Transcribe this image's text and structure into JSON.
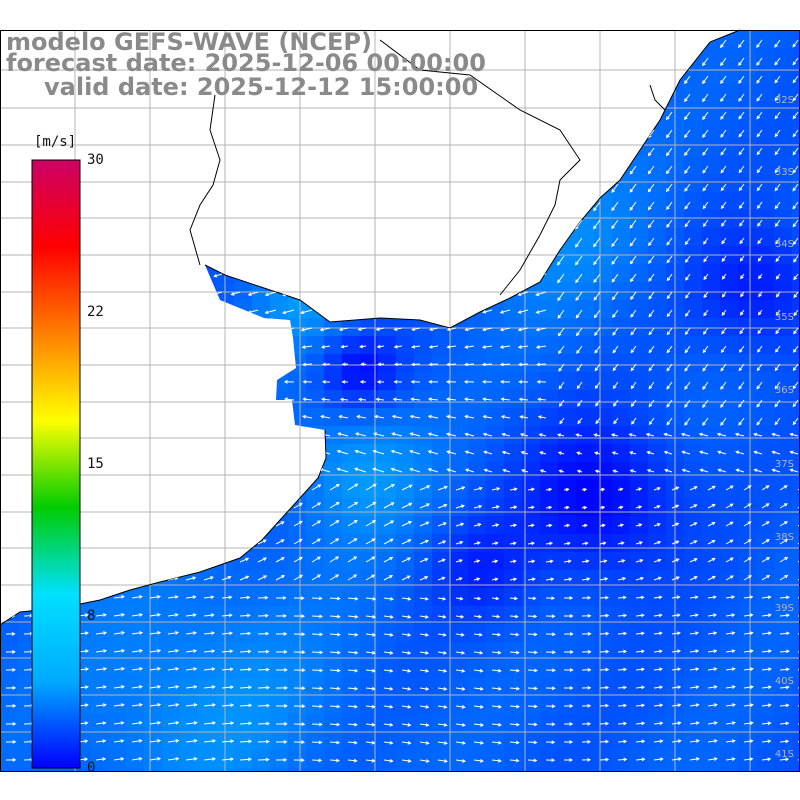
{
  "title": {
    "model": "modelo GEFS-WAVE (NCEP)",
    "forecast": "forecast date: 2025-12-06 00:00:00",
    "valid": "valid date: 2025-12-12 15:00:00"
  },
  "colorbar": {
    "unit": "[m/s]",
    "ticks": [
      "30",
      "22",
      "15",
      "8",
      "0"
    ],
    "tick_values": [
      30,
      22,
      15,
      8,
      0
    ],
    "stops": [
      "#0000ff",
      "#00aaff",
      "#00e0ff",
      "#00cc00",
      "#ffff00",
      "#ff7f00",
      "#ff0000",
      "#cc0066"
    ]
  },
  "lat_labels": [
    "32S",
    "33S",
    "34S",
    "35S",
    "36S",
    "37S",
    "38S",
    "39S",
    "40S",
    "41S"
  ],
  "colors": {
    "land": "#ffffff",
    "grid": "#b4b4b4",
    "coast": "#000000",
    "arrows": "#ffffff",
    "field_calm": "#0000ff",
    "field_moderate": "#00ccff"
  }
}
